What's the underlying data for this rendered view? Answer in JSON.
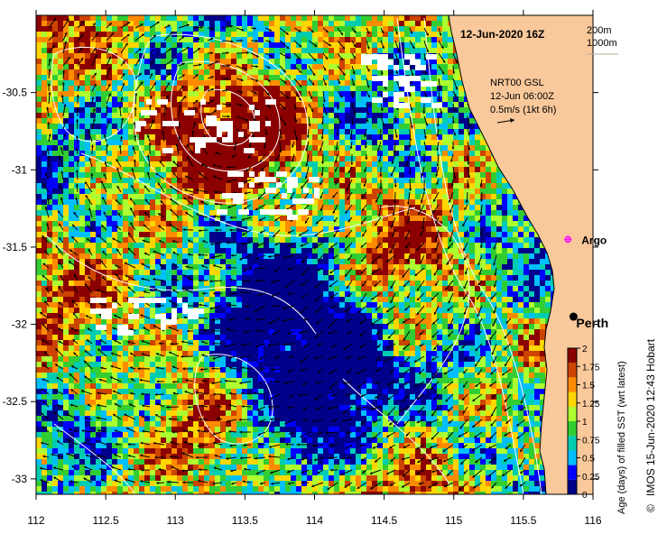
{
  "map": {
    "title": "12-Jun-2020 16Z",
    "depth_labels": [
      "200m",
      "1000m"
    ],
    "current_info": [
      "NRT00 GSL",
      "12-Jun 06:00Z",
      "0.5m/s (1kt 6h)"
    ],
    "places": [
      {
        "name": "Perth",
        "lon": 115.86,
        "lat": -31.95,
        "marker": "dot"
      },
      {
        "name": "Argo",
        "lon": 115.82,
        "lat": -31.45,
        "marker": "star"
      }
    ],
    "x_ticks": [
      "112",
      "112.5",
      "113",
      "113.5",
      "114",
      "114.5",
      "115",
      "115.5",
      "116"
    ],
    "y_ticks": [
      "-30.5",
      "-31",
      "-31.5",
      "-32",
      "-32.5",
      "-33"
    ],
    "lon_range": [
      112,
      116
    ],
    "lat_range": [
      -30.0,
      -33.1
    ],
    "credit": "IMOS 15-Jun-2020 12:43 Hobart",
    "copyright": "©",
    "colors": {
      "land": "#f9c89b",
      "no_data": "#ffffff",
      "contour": "#ffffff"
    }
  },
  "colorbar": {
    "label": "Age (days) of filled SST (wrt latest)",
    "ticks": [
      "0",
      "0.25",
      "0.5",
      "0.75",
      "1",
      "1.25",
      "1.5",
      "1.75",
      "2"
    ],
    "range": [
      0,
      2
    ],
    "colors": [
      "#00008b",
      "#0000ff",
      "#00bfff",
      "#00cdb0",
      "#32cd32",
      "#adff2f",
      "#ffd700",
      "#ff8c00",
      "#cc4400",
      "#8b0000"
    ]
  }
}
